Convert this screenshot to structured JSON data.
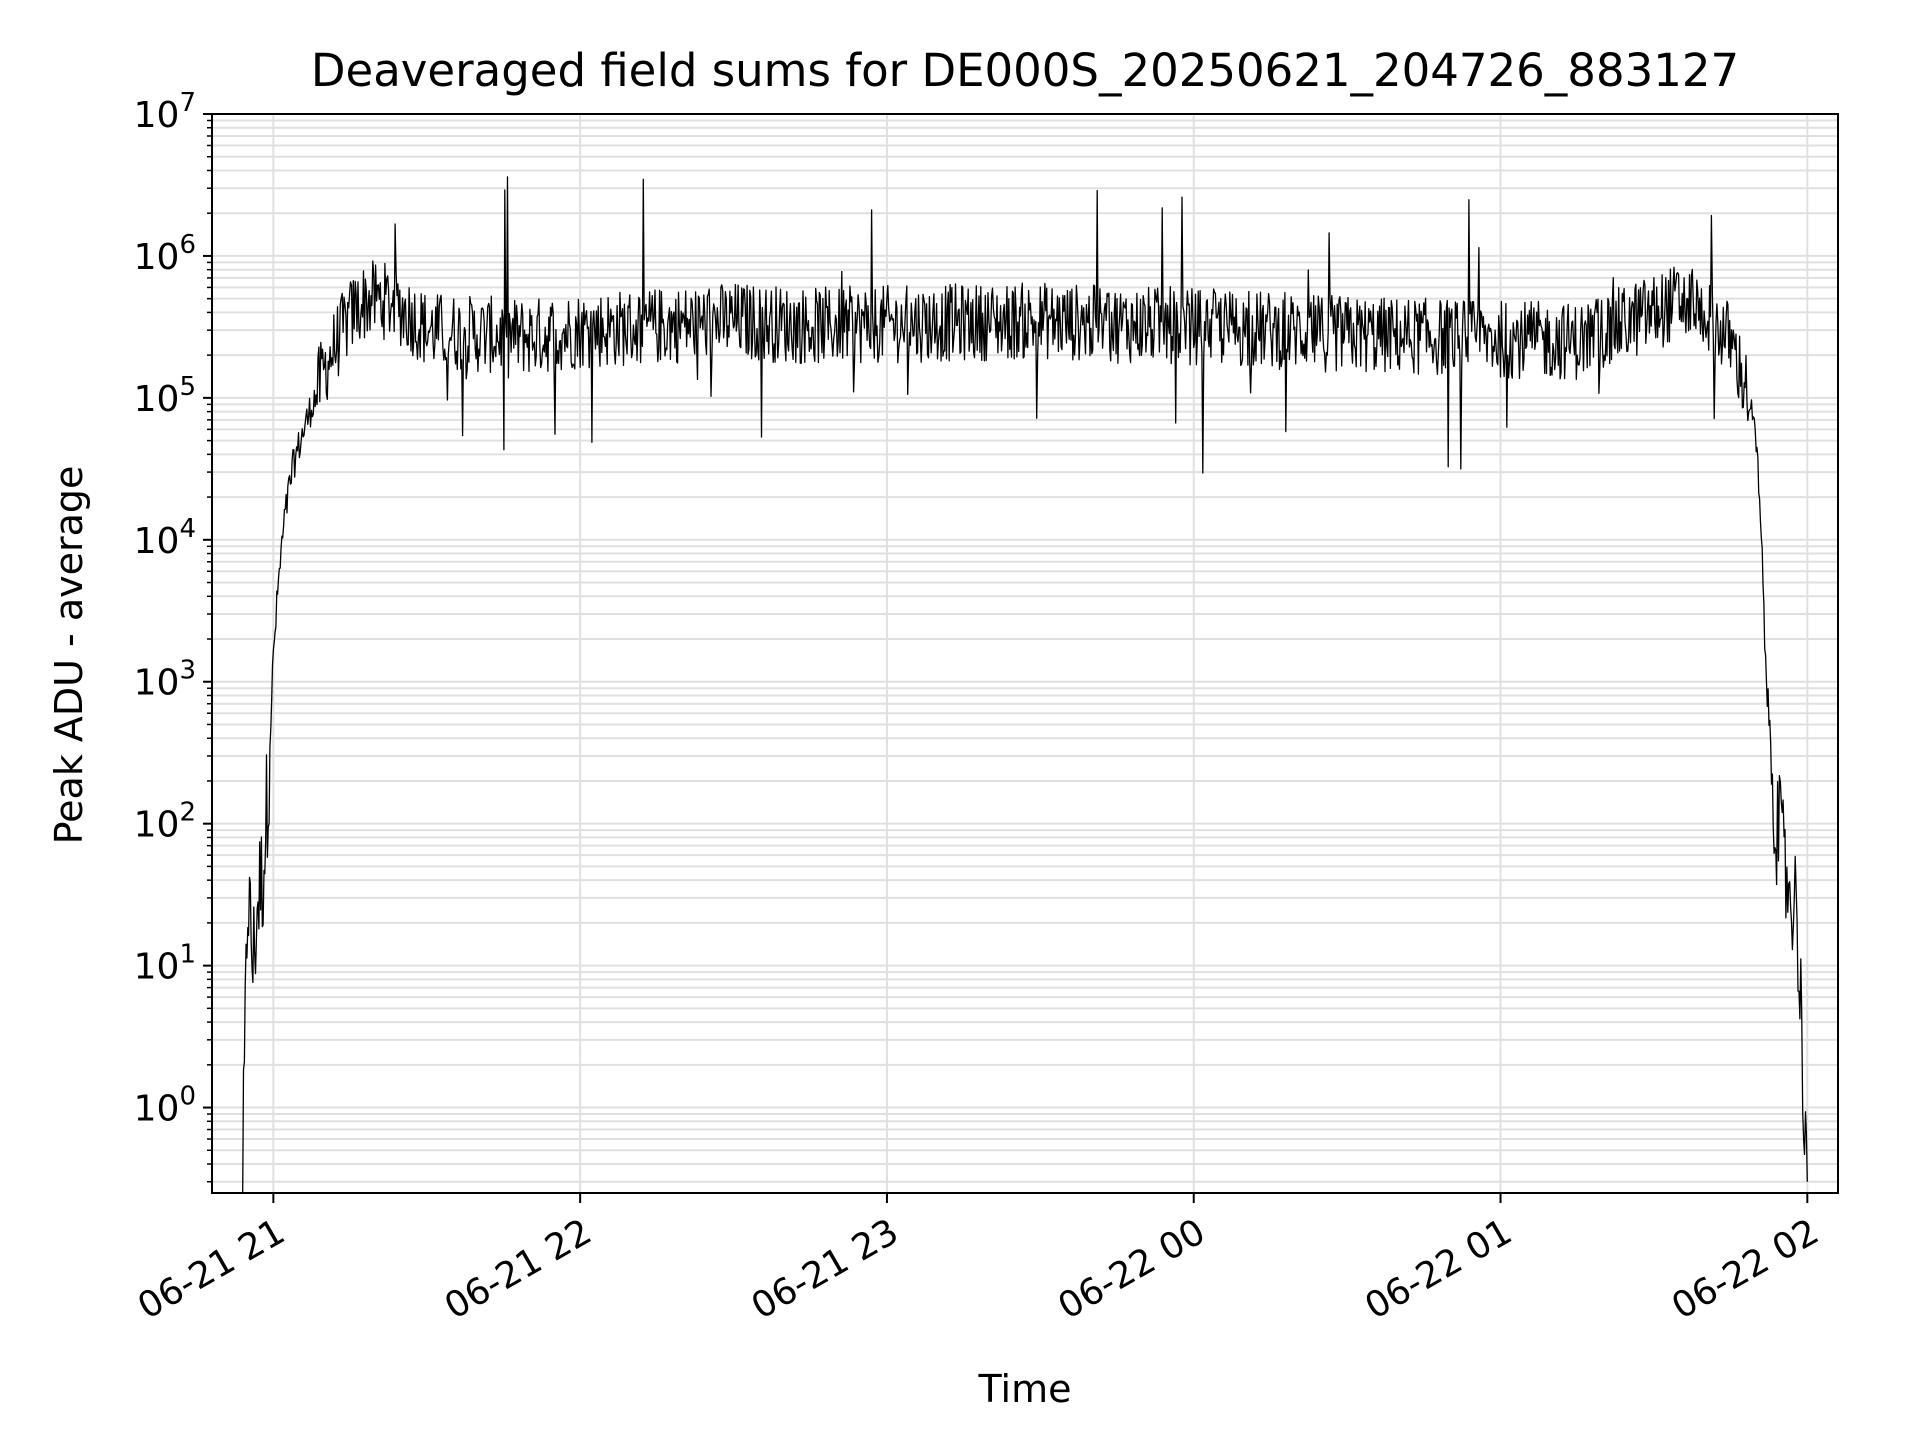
{
  "chart_data": {
    "type": "line",
    "title": "Deaveraged field sums for DE000S_20250621_204726_883127",
    "xlabel": "Time",
    "ylabel": "Peak ADU - average",
    "yscale": "log",
    "ylim": [
      0.25,
      10000000
    ],
    "xlim": [
      "2025-06-21 20:48",
      "2025-06-22 02:06"
    ],
    "grid": true,
    "line_color": "#000000",
    "grid_color": "#e0e0e0",
    "x_ticks": [
      {
        "value": "2025-06-21 21:00",
        "label": "06-21 21"
      },
      {
        "value": "2025-06-21 22:00",
        "label": "06-21 22"
      },
      {
        "value": "2025-06-21 23:00",
        "label": "06-21 23"
      },
      {
        "value": "2025-06-22 00:00",
        "label": "06-22 00"
      },
      {
        "value": "2025-06-22 01:00",
        "label": "06-22 01"
      },
      {
        "value": "2025-06-22 02:00",
        "label": "06-22 02"
      }
    ],
    "y_ticks": [
      {
        "value": 1,
        "base": "10",
        "exp": "0"
      },
      {
        "value": 10,
        "base": "10",
        "exp": "1"
      },
      {
        "value": 100,
        "base": "10",
        "exp": "2"
      },
      {
        "value": 1000,
        "base": "10",
        "exp": "3"
      },
      {
        "value": 10000,
        "base": "10",
        "exp": "4"
      },
      {
        "value": 100000,
        "base": "10",
        "exp": "5"
      },
      {
        "value": 1000000,
        "base": "10",
        "exp": "6"
      },
      {
        "value": 10000000,
        "base": "10",
        "exp": "7"
      }
    ],
    "series": [
      {
        "x": [
          "2025-06-21 20:54",
          "2025-06-21 20:55",
          "2025-06-21 20:56",
          "2025-06-21 20:57",
          "2025-06-21 20:58",
          "2025-06-21 20:59",
          "2025-06-21 21:00",
          "2025-06-21 21:01",
          "2025-06-21 21:02",
          "2025-06-21 21:03",
          "2025-06-21 21:04",
          "2025-06-21 21:06",
          "2025-06-21 21:08",
          "2025-06-21 21:10",
          "2025-06-21 21:12",
          "2025-06-21 21:14",
          "2025-06-21 21:16",
          "2025-06-21 21:18",
          "2025-06-21 21:20",
          "2025-06-21 21:22",
          "2025-06-21 21:24",
          "2025-06-21 21:26",
          "2025-06-21 21:28",
          "2025-06-21 21:30",
          "2025-06-21 21:40",
          "2025-06-21 21:50",
          "2025-06-21 22:00",
          "2025-06-21 22:15",
          "2025-06-21 22:30",
          "2025-06-21 22:45",
          "2025-06-21 23:00",
          "2025-06-21 23:15",
          "2025-06-21 23:30",
          "2025-06-21 23:45",
          "2025-06-22 00:00",
          "2025-06-22 00:15",
          "2025-06-22 00:30",
          "2025-06-22 00:45",
          "2025-06-22 01:00",
          "2025-06-22 01:15",
          "2025-06-22 01:30",
          "2025-06-22 01:35",
          "2025-06-22 01:40",
          "2025-06-22 01:45",
          "2025-06-22 01:48",
          "2025-06-22 01:50",
          "2025-06-22 01:51",
          "2025-06-22 01:52",
          "2025-06-22 01:53",
          "2025-06-22 01:54",
          "2025-06-22 01:56",
          "2025-06-22 01:58",
          "2025-06-22 02:00"
        ],
        "y": [
          0.3,
          35,
          10,
          30,
          45,
          200,
          1500,
          5000,
          12000,
          22000,
          35000,
          60000,
          100000,
          160000,
          230000,
          320000,
          420000,
          480000,
          500000,
          480000,
          450000,
          400000,
          350000,
          300000,
          280000,
          270000,
          300000,
          320000,
          350000,
          320000,
          330000,
          340000,
          350000,
          330000,
          320000,
          300000,
          280000,
          270000,
          260000,
          250000,
          400000,
          480000,
          400000,
          250000,
          120000,
          50000,
          10000,
          1000,
          300,
          100,
          40,
          25,
          0.3
        ]
      }
    ]
  }
}
